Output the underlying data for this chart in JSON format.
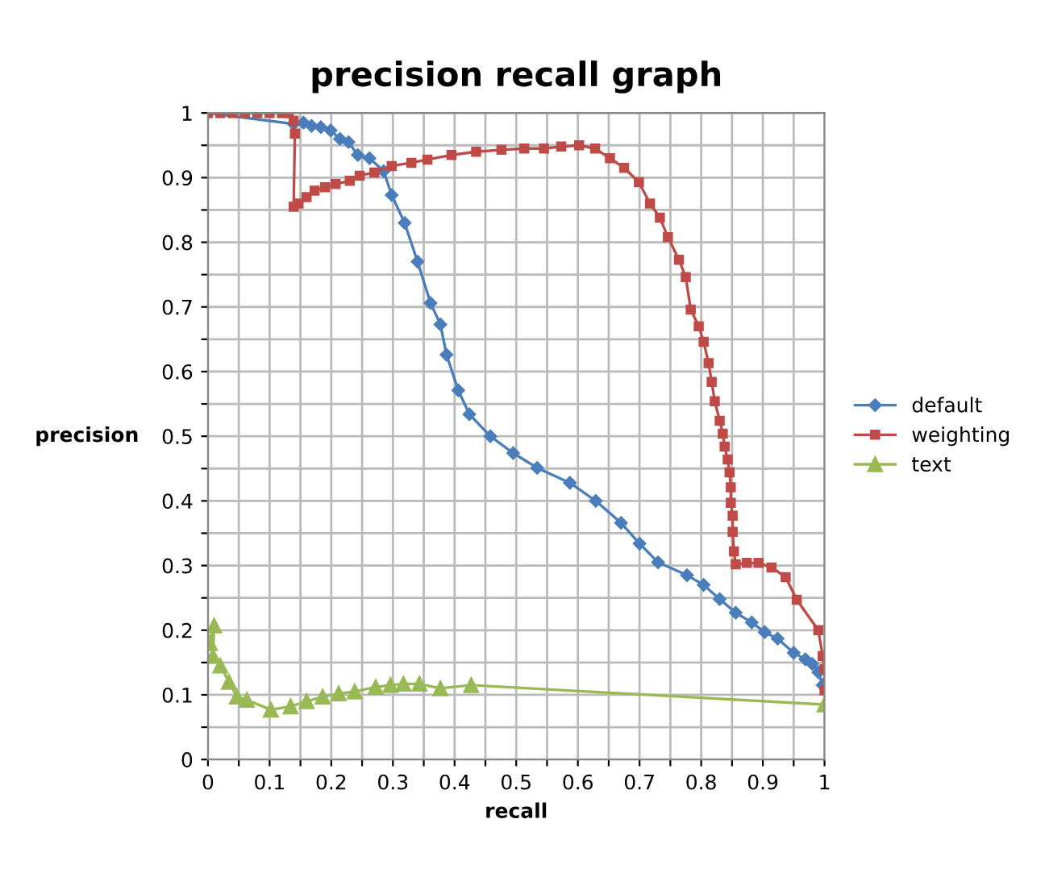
{
  "chart_data": {
    "type": "line",
    "title": "precision recall graph",
    "xlabel": "recall",
    "ylabel": "precision",
    "xlim": [
      0,
      1
    ],
    "ylim": [
      0,
      1
    ],
    "xticks": [
      0,
      {
        "value": 0.05,
        "label": null
      },
      0.1,
      {
        "value": 0.15,
        "label": null
      },
      0.2,
      {
        "value": 0.25,
        "label": null
      },
      0.3,
      {
        "value": 0.35,
        "label": null
      },
      0.4,
      {
        "value": 0.45,
        "label": null
      },
      0.5,
      {
        "value": 0.55,
        "label": null
      },
      0.6,
      {
        "value": 0.65,
        "label": null
      },
      0.7,
      {
        "value": 0.75,
        "label": null
      },
      0.8,
      {
        "value": 0.85,
        "label": null
      },
      0.9,
      {
        "value": 0.95,
        "label": null
      },
      1
    ],
    "yticks": [
      0,
      {
        "value": 0.05,
        "label": null
      },
      0.1,
      {
        "value": 0.15,
        "label": null
      },
      0.2,
      {
        "value": 0.25,
        "label": null
      },
      0.3,
      {
        "value": 0.35,
        "label": null
      },
      0.4,
      {
        "value": 0.45,
        "label": null
      },
      0.5,
      {
        "value": 0.55,
        "label": null
      },
      0.6,
      {
        "value": 0.65,
        "label": null
      },
      0.7,
      {
        "value": 0.75,
        "label": null
      },
      0.8,
      {
        "value": 0.85,
        "label": null
      },
      0.9,
      {
        "value": 0.95,
        "label": null
      },
      1
    ],
    "grid": true,
    "legend": "right",
    "series": [
      {
        "name": "default",
        "color": "#4a7ebb",
        "marker": "diamond",
        "x": [
          0,
          0.139,
          0.155,
          0.168,
          0.183,
          0.199,
          0.214,
          0.228,
          0.243,
          0.262,
          0.285,
          0.298,
          0.319,
          0.34,
          0.361,
          0.377,
          0.387,
          0.406,
          0.424,
          0.458,
          0.495,
          0.534,
          0.587,
          0.629,
          0.67,
          0.7,
          0.73,
          0.777,
          0.804,
          0.83,
          0.856,
          0.882,
          0.903,
          0.924,
          0.95,
          0.969,
          0.98,
          0.99,
          0.997
        ],
        "values": [
          1,
          0.983,
          0.985,
          0.98,
          0.978,
          0.973,
          0.96,
          0.955,
          0.935,
          0.93,
          0.91,
          0.873,
          0.83,
          0.77,
          0.706,
          0.673,
          0.626,
          0.571,
          0.534,
          0.5,
          0.474,
          0.451,
          0.428,
          0.4,
          0.366,
          0.334,
          0.305,
          0.285,
          0.27,
          0.248,
          0.227,
          0.212,
          0.197,
          0.187,
          0.165,
          0.155,
          0.148,
          0.135,
          0.115
        ]
      },
      {
        "name": "weighting",
        "color": "#be4b48",
        "marker": "square",
        "x": [
          0,
          0.02,
          0.04,
          0.06,
          0.08,
          0.1,
          0.12,
          0.131,
          0.139,
          0.141,
          0.139,
          0.147,
          0.16,
          0.173,
          0.19,
          0.207,
          0.23,
          0.246,
          0.27,
          0.298,
          0.33,
          0.356,
          0.395,
          0.435,
          0.476,
          0.513,
          0.545,
          0.573,
          0.602,
          0.628,
          0.652,
          0.675,
          0.699,
          0.717,
          0.733,
          0.746,
          0.764,
          0.775,
          0.783,
          0.796,
          0.804,
          0.812,
          0.817,
          0.822,
          0.83,
          0.835,
          0.838,
          0.843,
          0.846,
          0.848,
          0.848,
          0.851,
          0.851,
          0.853,
          0.856,
          0.874,
          0.893,
          0.914,
          0.937,
          0.955,
          0.99,
          0.997,
          1,
          1
        ],
        "values": [
          1,
          1,
          1,
          1,
          1,
          1,
          1,
          1,
          0.988,
          0.968,
          0.855,
          0.86,
          0.87,
          0.88,
          0.885,
          0.89,
          0.895,
          0.903,
          0.908,
          0.918,
          0.923,
          0.928,
          0.935,
          0.94,
          0.943,
          0.945,
          0.945,
          0.948,
          0.95,
          0.945,
          0.93,
          0.915,
          0.893,
          0.86,
          0.838,
          0.808,
          0.773,
          0.746,
          0.696,
          0.67,
          0.646,
          0.613,
          0.584,
          0.554,
          0.524,
          0.504,
          0.484,
          0.464,
          0.444,
          0.421,
          0.397,
          0.377,
          0.352,
          0.322,
          0.302,
          0.304,
          0.304,
          0.297,
          0.282,
          0.247,
          0.2,
          0.16,
          0.14,
          0.107
        ]
      },
      {
        "name": "text",
        "color": "#98b954",
        "marker": "triangle",
        "x": [
          0.003,
          0.01,
          0.008,
          0.02,
          0.034,
          0.047,
          0.063,
          0.102,
          0.134,
          0.16,
          0.186,
          0.212,
          0.238,
          0.272,
          0.296,
          0.317,
          0.343,
          0.377,
          0.427,
          1
        ],
        "values": [
          0.18,
          0.207,
          0.16,
          0.145,
          0.12,
          0.097,
          0.092,
          0.077,
          0.082,
          0.09,
          0.097,
          0.102,
          0.105,
          0.112,
          0.115,
          0.117,
          0.117,
          0.11,
          0.115,
          0.085
        ]
      }
    ]
  }
}
